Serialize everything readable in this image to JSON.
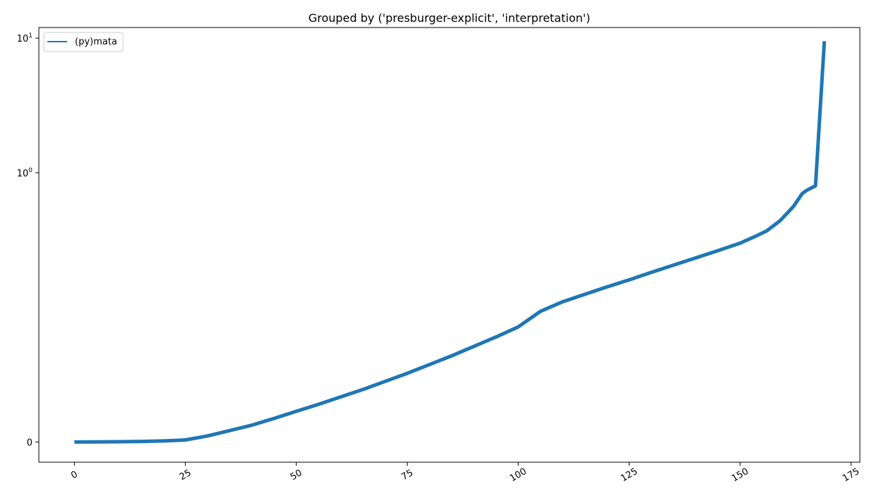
{
  "chart_data": {
    "type": "line",
    "title": "Grouped by ('presburger-explicit', 'interpretation')",
    "xlabel": "",
    "ylabel": "",
    "xlim": [
      -8,
      177
    ],
    "x_ticks": [
      {
        "value": 0,
        "label": "0"
      },
      {
        "value": 25,
        "label": "25"
      },
      {
        "value": 50,
        "label": "50"
      },
      {
        "value": 75,
        "label": "75"
      },
      {
        "value": 100,
        "label": "100"
      },
      {
        "value": 125,
        "label": "125"
      },
      {
        "value": 150,
        "label": "150"
      },
      {
        "value": 175,
        "label": "175"
      }
    ],
    "y_scale": "symlog",
    "y_linthresh": 0.1,
    "ylim": [
      -0.015,
      12
    ],
    "y_ticks": [
      {
        "value": 0,
        "label": "0",
        "exp": ""
      },
      {
        "value": 1,
        "label": "10",
        "exp": "0"
      },
      {
        "value": 10,
        "label": "10",
        "exp": "1"
      }
    ],
    "grid": false,
    "legend": {
      "position": "top-left"
    },
    "series": [
      {
        "name": "(py)mata",
        "color": "#1f77b4",
        "x": [
          0,
          5,
          10,
          15,
          20,
          25,
          30,
          35,
          40,
          45,
          50,
          55,
          60,
          65,
          70,
          75,
          80,
          85,
          90,
          95,
          100,
          105,
          110,
          115,
          120,
          125,
          130,
          135,
          140,
          145,
          150,
          153,
          156,
          159,
          162,
          164,
          165,
          167,
          169
        ],
        "y": [
          0,
          0.0001,
          0.0002,
          0.0004,
          0.0008,
          0.0015,
          0.0045,
          0.0085,
          0.0125,
          0.0175,
          0.0228,
          0.028,
          0.0335,
          0.039,
          0.045,
          0.051,
          0.0575,
          0.064,
          0.071,
          0.078,
          0.0855,
          0.097,
          0.11,
          0.125,
          0.142,
          0.16,
          0.182,
          0.206,
          0.233,
          0.264,
          0.3,
          0.332,
          0.37,
          0.44,
          0.56,
          0.7,
          0.74,
          0.8,
          9.5
        ]
      }
    ]
  }
}
